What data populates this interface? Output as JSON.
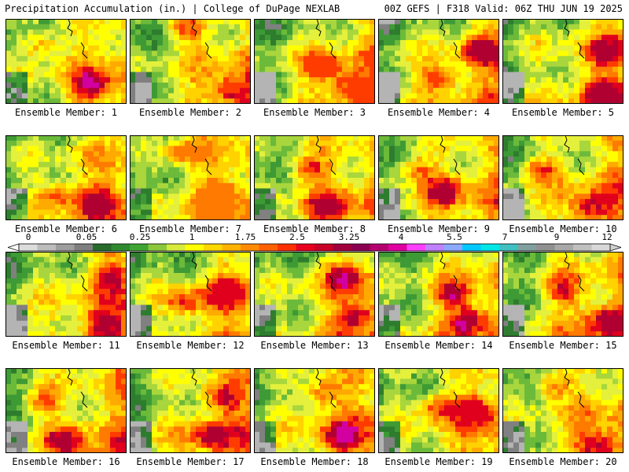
{
  "header": {
    "title_left": "Precipitation Accumulation (in.) | College of DuPage NEXLAB",
    "title_right": "00Z GEFS | F318 Valid: 06Z THU JUN 19 2025"
  },
  "panels": [
    {
      "label": "Ensemble Member: 1",
      "member": 1,
      "max_level": 14,
      "hot": [
        [
          0.7,
          0.78
        ],
        [
          0.3,
          0.3
        ]
      ]
    },
    {
      "label": "Ensemble Member: 2",
      "member": 2,
      "max_level": 13,
      "hot": [
        [
          0.45,
          0.12
        ],
        [
          0.85,
          0.85
        ]
      ]
    },
    {
      "label": "Ensemble Member: 3",
      "member": 3,
      "max_level": 11,
      "hot": [
        [
          0.8,
          0.8
        ],
        [
          0.55,
          0.55
        ]
      ]
    },
    {
      "label": "Ensemble Member: 4",
      "member": 4,
      "max_level": 13,
      "hot": [
        [
          0.85,
          0.38
        ],
        [
          0.5,
          0.7
        ]
      ]
    },
    {
      "label": "Ensemble Member: 5",
      "member": 5,
      "max_level": 13,
      "hot": [
        [
          0.85,
          0.85
        ],
        [
          0.85,
          0.4
        ]
      ]
    },
    {
      "label": "Ensemble Member: 6",
      "member": 6,
      "max_level": 13,
      "hot": [
        [
          0.75,
          0.75
        ],
        [
          0.4,
          0.7
        ]
      ]
    },
    {
      "label": "Ensemble Member: 7",
      "member": 7,
      "max_level": 10,
      "hot": [
        [
          0.7,
          0.7
        ],
        [
          0.45,
          0.2
        ]
      ]
    },
    {
      "label": "Ensemble Member: 8",
      "member": 8,
      "max_level": 13,
      "hot": [
        [
          0.45,
          0.4
        ],
        [
          0.6,
          0.85
        ]
      ]
    },
    {
      "label": "Ensemble Member: 9",
      "member": 9,
      "max_level": 13,
      "hot": [
        [
          0.55,
          0.65
        ],
        [
          0.3,
          0.4
        ]
      ]
    },
    {
      "label": "Ensemble Member: 10",
      "member": 10,
      "max_level": 14,
      "hot": [
        [
          0.7,
          0.85
        ],
        [
          0.3,
          0.4
        ]
      ]
    },
    {
      "label": "Ensemble Member: 11",
      "member": 11,
      "max_level": 13,
      "hot": [
        [
          0.85,
          0.3
        ],
        [
          0.8,
          0.85
        ]
      ]
    },
    {
      "label": "Ensemble Member: 12",
      "member": 12,
      "max_level": 12,
      "hot": [
        [
          0.8,
          0.5
        ],
        [
          0.45,
          0.6
        ]
      ]
    },
    {
      "label": "Ensemble Member: 13",
      "member": 13,
      "max_level": 14,
      "hot": [
        [
          0.85,
          0.75
        ],
        [
          0.75,
          0.3
        ]
      ]
    },
    {
      "label": "Ensemble Member: 14",
      "member": 14,
      "max_level": 14,
      "hot": [
        [
          0.75,
          0.8
        ],
        [
          0.6,
          0.5
        ]
      ]
    },
    {
      "label": "Ensemble Member: 15",
      "member": 15,
      "max_level": 13,
      "hot": [
        [
          0.85,
          0.8
        ],
        [
          0.5,
          0.45
        ]
      ]
    },
    {
      "label": "Ensemble Member: 16",
      "member": 16,
      "max_level": 13,
      "hot": [
        [
          0.5,
          0.85
        ],
        [
          0.3,
          0.4
        ]
      ]
    },
    {
      "label": "Ensemble Member: 17",
      "member": 17,
      "max_level": 13,
      "hot": [
        [
          0.65,
          0.8
        ],
        [
          0.75,
          0.35
        ]
      ]
    },
    {
      "label": "Ensemble Member: 18",
      "member": 18,
      "max_level": 14,
      "hot": [
        [
          0.7,
          0.8
        ],
        [
          0.55,
          0.3
        ]
      ]
    },
    {
      "label": "Ensemble Member: 19",
      "member": 19,
      "max_level": 12,
      "hot": [
        [
          0.8,
          0.5
        ],
        [
          0.5,
          0.45
        ]
      ]
    },
    {
      "label": "Ensemble Member: 20",
      "member": 20,
      "max_level": 13,
      "hot": [
        [
          0.4,
          0.2
        ],
        [
          0.8,
          0.9
        ]
      ]
    }
  ],
  "colorbar": {
    "labels": [
      "0",
      "0.05",
      "0.25",
      "1",
      "1.75",
      "2.5",
      "3.25",
      "4",
      "5.5",
      "7",
      "9",
      "12"
    ],
    "colors": [
      "#dcdcdc",
      "#bdbdbd",
      "#9e9e9e",
      "#7f7f7f",
      "#276b2a",
      "#2f8a2f",
      "#3ea532",
      "#8cc83c",
      "#d7eb3c",
      "#ffff00",
      "#ffd700",
      "#ffb300",
      "#ff8c00",
      "#ff6000",
      "#ff3000",
      "#e8001e",
      "#c80028",
      "#a0003c",
      "#8b0050",
      "#b4006e",
      "#e000a0",
      "#ff40ff",
      "#c080ff",
      "#8ca8ff",
      "#00c8ff",
      "#00e6e6",
      "#40c0c0",
      "#80a0a0",
      "#909090",
      "#a8a8a8",
      "#c0c0c0",
      "#d8d8d8"
    ]
  },
  "map_palette": [
    "#b4b4b4",
    "#808080",
    "#2e7d2e",
    "#3e9a35",
    "#6cba3a",
    "#a8d63c",
    "#e4f03c",
    "#ffff00",
    "#ffd200",
    "#ffaa00",
    "#ff7a00",
    "#ff3c00",
    "#e0001e",
    "#b00032",
    "#d200a0",
    "#46e0ff"
  ]
}
